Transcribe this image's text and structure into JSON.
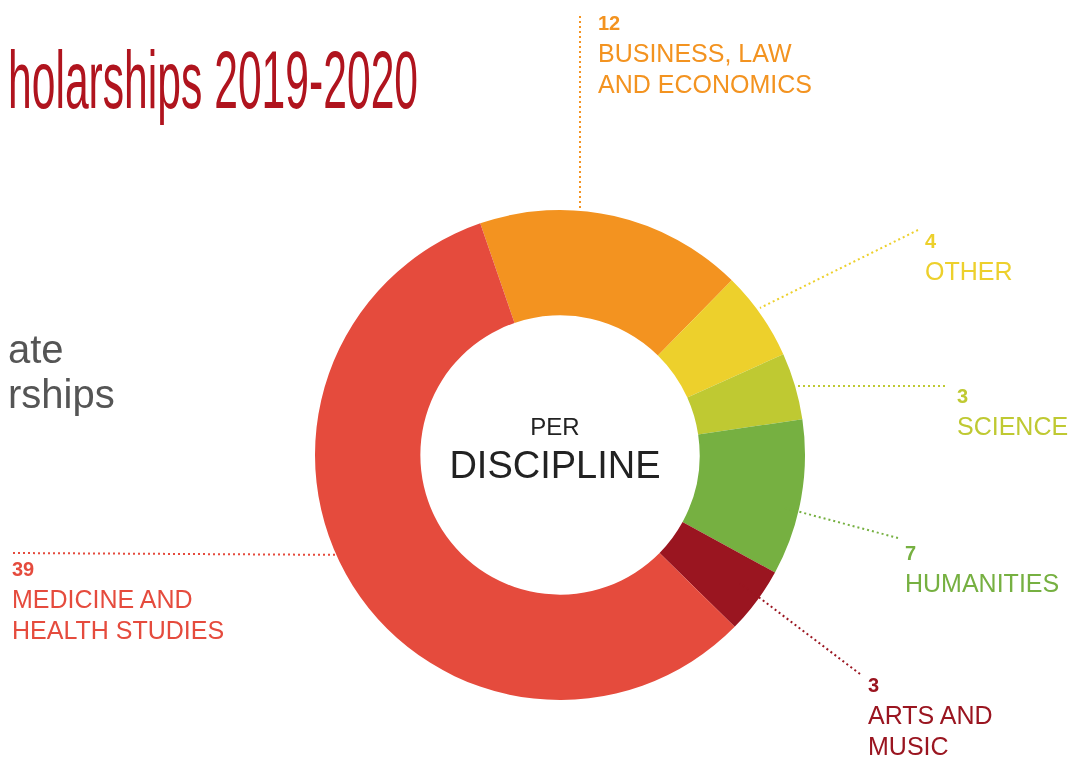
{
  "chart_data": {
    "type": "donut",
    "title": "holarships 2019-2020",
    "categories": [
      "BUSINESS, LAW AND ECONOMICS",
      "OTHER",
      "SCIENCE",
      "HUMANITIES",
      "ARTS AND MUSIC",
      "MEDICINE AND HEALTH STUDIES"
    ],
    "values": [
      12,
      4,
      3,
      7,
      3,
      39
    ],
    "colors": [
      "#f39320",
      "#edd02c",
      "#bfc932",
      "#76b041",
      "#9a1520",
      "#e54b3d"
    ],
    "data_labels": true,
    "annotations": [
      "PER DISCIPLINE",
      "ate rships"
    ]
  }
}
